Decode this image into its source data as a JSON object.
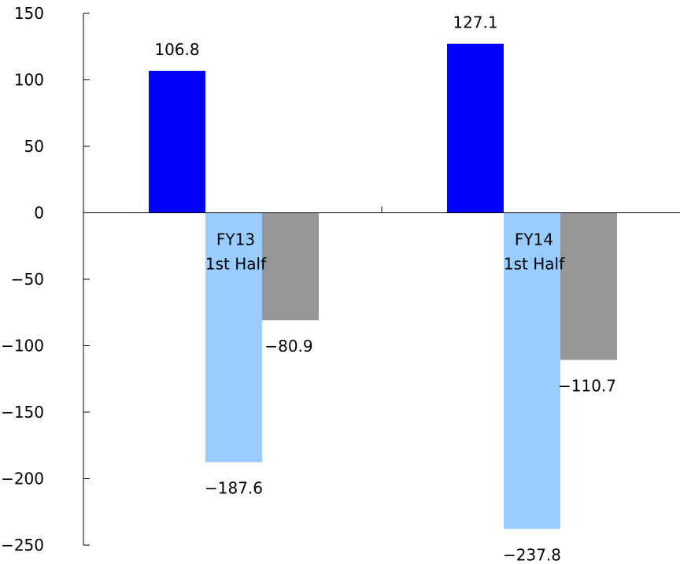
{
  "chart_data": {
    "type": "bar",
    "categories": [
      [
        "FY13",
        "1st Half"
      ],
      [
        "FY14",
        "1st Half"
      ]
    ],
    "series": [
      {
        "color": "#0000ff",
        "values": [
          106.8,
          127.1
        ]
      },
      {
        "color": "#99ccff",
        "values": [
          -187.6,
          -237.8
        ]
      },
      {
        "color": "#969696",
        "values": [
          -80.9,
          -110.7
        ]
      }
    ],
    "data_labels": [
      [
        "106.8",
        "127.1"
      ],
      [
        "−187.6",
        "−237.8"
      ],
      [
        "−80.9",
        "−110.7"
      ]
    ],
    "yticks": [
      150,
      100,
      50,
      0,
      -50,
      -100,
      -150,
      -200,
      -250
    ],
    "ytick_labels": [
      "150",
      "100",
      "50",
      "0",
      "−50",
      "−100",
      "−150",
      "−200",
      "−250"
    ],
    "ylim": [
      -250,
      150
    ],
    "grid": false,
    "legend": "none",
    "title": "",
    "xlabel": "",
    "ylabel": ""
  }
}
